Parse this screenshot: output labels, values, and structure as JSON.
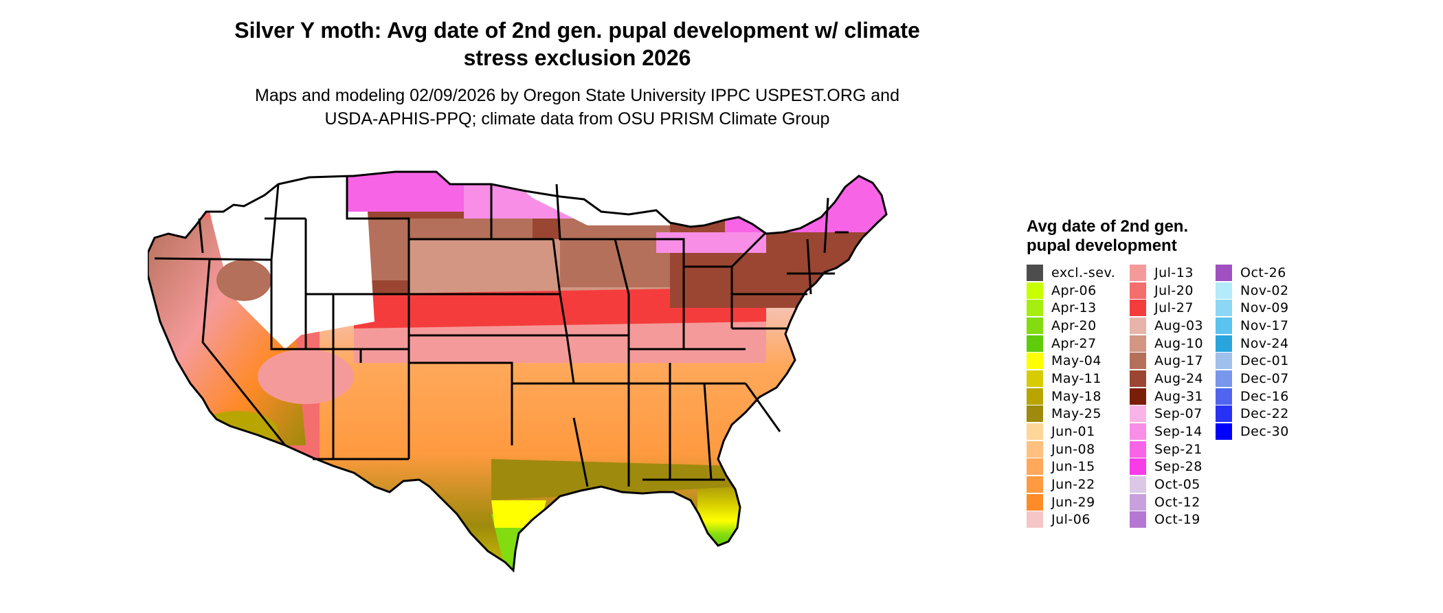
{
  "title_line1": "Silver Y moth: Avg date of 2nd gen. pupal development w/ climate",
  "title_line2": "stress exclusion 2026",
  "subtitle_line1": "Maps and modeling 02/09/2026 by Oregon State University IPPC USPEST.ORG and",
  "subtitle_line2": "USDA-APHIS-PPQ; climate data from OSU PRISM Climate Group",
  "legend": {
    "title": "Avg date of 2nd gen. pupal development",
    "items": [
      {
        "label": "excl.-sev.",
        "color": "#4d4d4d"
      },
      {
        "label": "Apr-06",
        "color": "#c8ff00"
      },
      {
        "label": "Apr-13",
        "color": "#a6ee10"
      },
      {
        "label": "Apr-20",
        "color": "#82dc10"
      },
      {
        "label": "Apr-27",
        "color": "#5ecc0a"
      },
      {
        "label": "May-04",
        "color": "#ffff00"
      },
      {
        "label": "May-11",
        "color": "#d6cc00"
      },
      {
        "label": "May-18",
        "color": "#b8a500"
      },
      {
        "label": "May-25",
        "color": "#9e8a0c"
      },
      {
        "label": "Jun-01",
        "color": "#ffd699"
      },
      {
        "label": "Jun-08",
        "color": "#ffc080"
      },
      {
        "label": "Jun-15",
        "color": "#ffa85a"
      },
      {
        "label": "Jun-22",
        "color": "#ff9a40"
      },
      {
        "label": "Jun-29",
        "color": "#ff8a28"
      },
      {
        "label": "Jul-06",
        "color": "#f5c6c6"
      },
      {
        "label": "Jul-13",
        "color": "#f59a9a"
      },
      {
        "label": "Jul-20",
        "color": "#f56e6e"
      },
      {
        "label": "Jul-27",
        "color": "#f53c3c"
      },
      {
        "label": "Aug-03",
        "color": "#e6b4aa"
      },
      {
        "label": "Aug-10",
        "color": "#d29682"
      },
      {
        "label": "Aug-17",
        "color": "#b4705a"
      },
      {
        "label": "Aug-24",
        "color": "#9a4632"
      },
      {
        "label": "Aug-31",
        "color": "#7a1e0a"
      },
      {
        "label": "Sep-07",
        "color": "#f8b4e6"
      },
      {
        "label": "Sep-14",
        "color": "#f88ee6"
      },
      {
        "label": "Sep-21",
        "color": "#f864e6"
      },
      {
        "label": "Sep-28",
        "color": "#f83ce6"
      },
      {
        "label": "Oct-05",
        "color": "#dcc8e6"
      },
      {
        "label": "Oct-12",
        "color": "#c8a0dc"
      },
      {
        "label": "Oct-19",
        "color": "#b478d2"
      },
      {
        "label": "Oct-26",
        "color": "#a050c0"
      },
      {
        "label": "Nov-02",
        "color": "#b4ebfa"
      },
      {
        "label": "Nov-09",
        "color": "#8cd7f5"
      },
      {
        "label": "Nov-17",
        "color": "#5ac3f0"
      },
      {
        "label": "Nov-24",
        "color": "#28a5dc"
      },
      {
        "label": "Dec-01",
        "color": "#a0c0ec"
      },
      {
        "label": "Dec-07",
        "color": "#7896ea"
      },
      {
        "label": "Dec-16",
        "color": "#5064f0"
      },
      {
        "label": "Dec-22",
        "color": "#2832f5"
      },
      {
        "label": "Dec-30",
        "color": "#0000ff"
      }
    ]
  },
  "map": {
    "region": "Contiguous United States",
    "boundaries": "state outlines",
    "background_excluded_color": "#ffffff"
  }
}
